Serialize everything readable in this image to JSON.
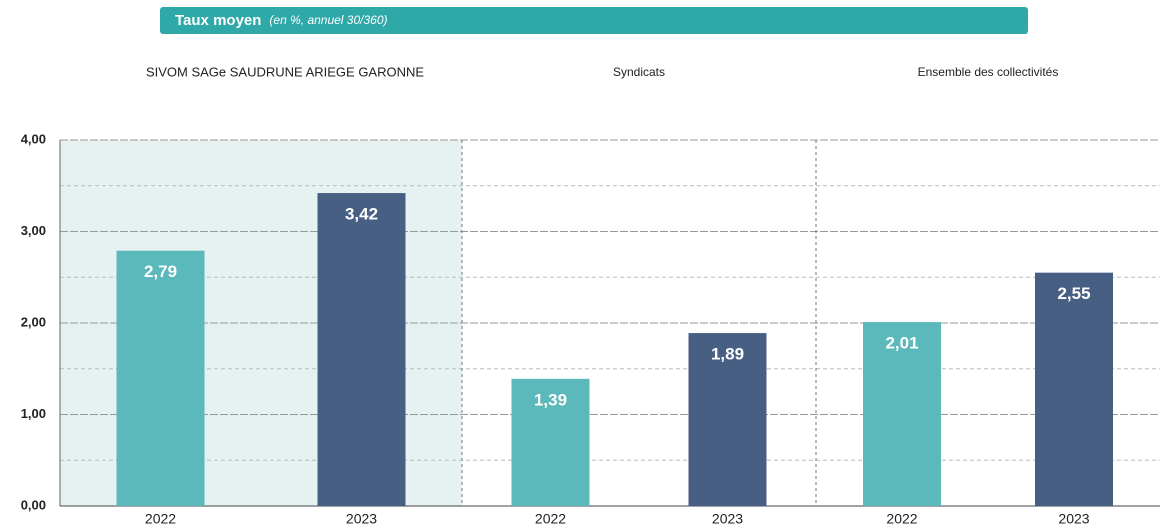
{
  "chart_data": {
    "type": "bar",
    "title": "Taux moyen",
    "subtitle": "(en %, annuel 30/360)",
    "colors": [
      "#5bb8bb",
      "#475f82"
    ],
    "panels": [
      {
        "name": "SIVOM SAGe SAUDRUNE ARIEGE GARONNE",
        "categories": [
          "2022",
          "2023"
        ],
        "values": [
          2.79,
          3.42
        ],
        "value_labels": [
          "2,79",
          "3,42"
        ]
      },
      {
        "name": "Syndicats",
        "categories": [
          "2022",
          "2023"
        ],
        "values": [
          1.39,
          1.89
        ],
        "value_labels": [
          "1,39",
          "1,89"
        ]
      },
      {
        "name": "Ensemble des collectivités",
        "categories": [
          "2022",
          "2023"
        ],
        "values": [
          2.01,
          2.55
        ],
        "value_labels": [
          "2,01",
          "2,55"
        ]
      }
    ],
    "ylim": [
      0,
      4
    ],
    "yticks": [
      {
        "value": 0,
        "label": "0,00"
      },
      {
        "value": 1,
        "label": "1,00"
      },
      {
        "value": 2,
        "label": "2,00"
      },
      {
        "value": 3,
        "label": "3,00"
      },
      {
        "value": 4,
        "label": "4,00"
      }
    ],
    "minor_yticks": [
      0.5,
      1.5,
      2.5,
      3.5
    ],
    "grid": true
  }
}
